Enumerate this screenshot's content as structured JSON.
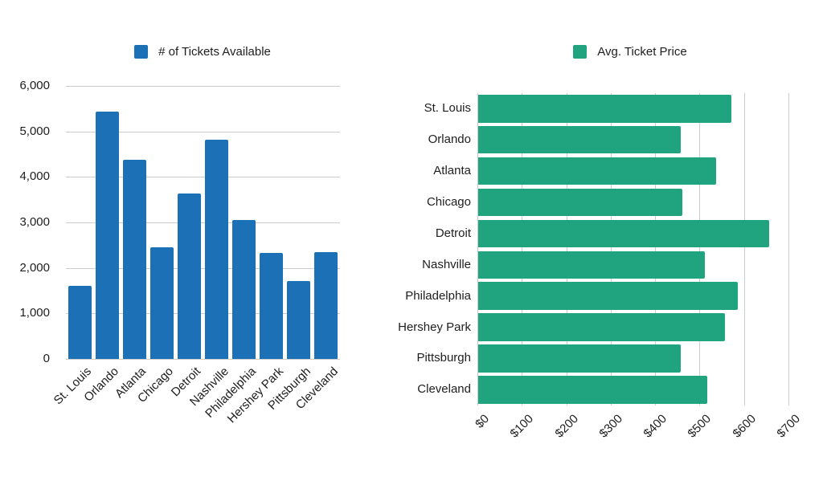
{
  "figure": {
    "background": "#ffffff",
    "text_color": "#1e1e1e",
    "gridline_color": "#cccccc"
  },
  "chart_data": [
    {
      "type": "bar",
      "orientation": "vertical",
      "legend": "# of Tickets Available",
      "legend_position": "top",
      "color": "#1c70b5",
      "categories": [
        "St. Louis",
        "Orlando",
        "Atlanta",
        "Chicago",
        "Detroit",
        "Nashville",
        "Philadelphia",
        "Hershey Park",
        "Pittsburgh",
        "Cleveland"
      ],
      "values": [
        1600,
        5440,
        4370,
        2450,
        3630,
        4810,
        3060,
        2330,
        1710,
        2350
      ],
      "ylim": [
        0,
        6000
      ],
      "yticks": [
        0,
        1000,
        2000,
        3000,
        4000,
        5000,
        6000
      ],
      "ytick_labels": [
        "0",
        "1,000",
        "2,000",
        "3,000",
        "4,000",
        "5,000",
        "6,000"
      ],
      "grid": true,
      "xlabel": "",
      "ylabel": ""
    },
    {
      "type": "bar",
      "orientation": "horizontal",
      "legend": "Avg. Ticket Price",
      "legend_position": "top",
      "color": "#20a47f",
      "categories": [
        "St. Louis",
        "Orlando",
        "Atlanta",
        "Chicago",
        "Detroit",
        "Nashville",
        "Philadelphia",
        "Hershey Park",
        "Pittsburgh",
        "Cleveland"
      ],
      "values": [
        570,
        455,
        535,
        460,
        655,
        510,
        585,
        555,
        455,
        515
      ],
      "xlim": [
        0,
        700
      ],
      "xticks": [
        0,
        100,
        200,
        300,
        400,
        500,
        600,
        700
      ],
      "xtick_labels": [
        "$0",
        "$100",
        "$200",
        "$300",
        "$400",
        "$500",
        "$600",
        "$700"
      ],
      "grid": true,
      "xlabel": "",
      "ylabel": ""
    }
  ]
}
